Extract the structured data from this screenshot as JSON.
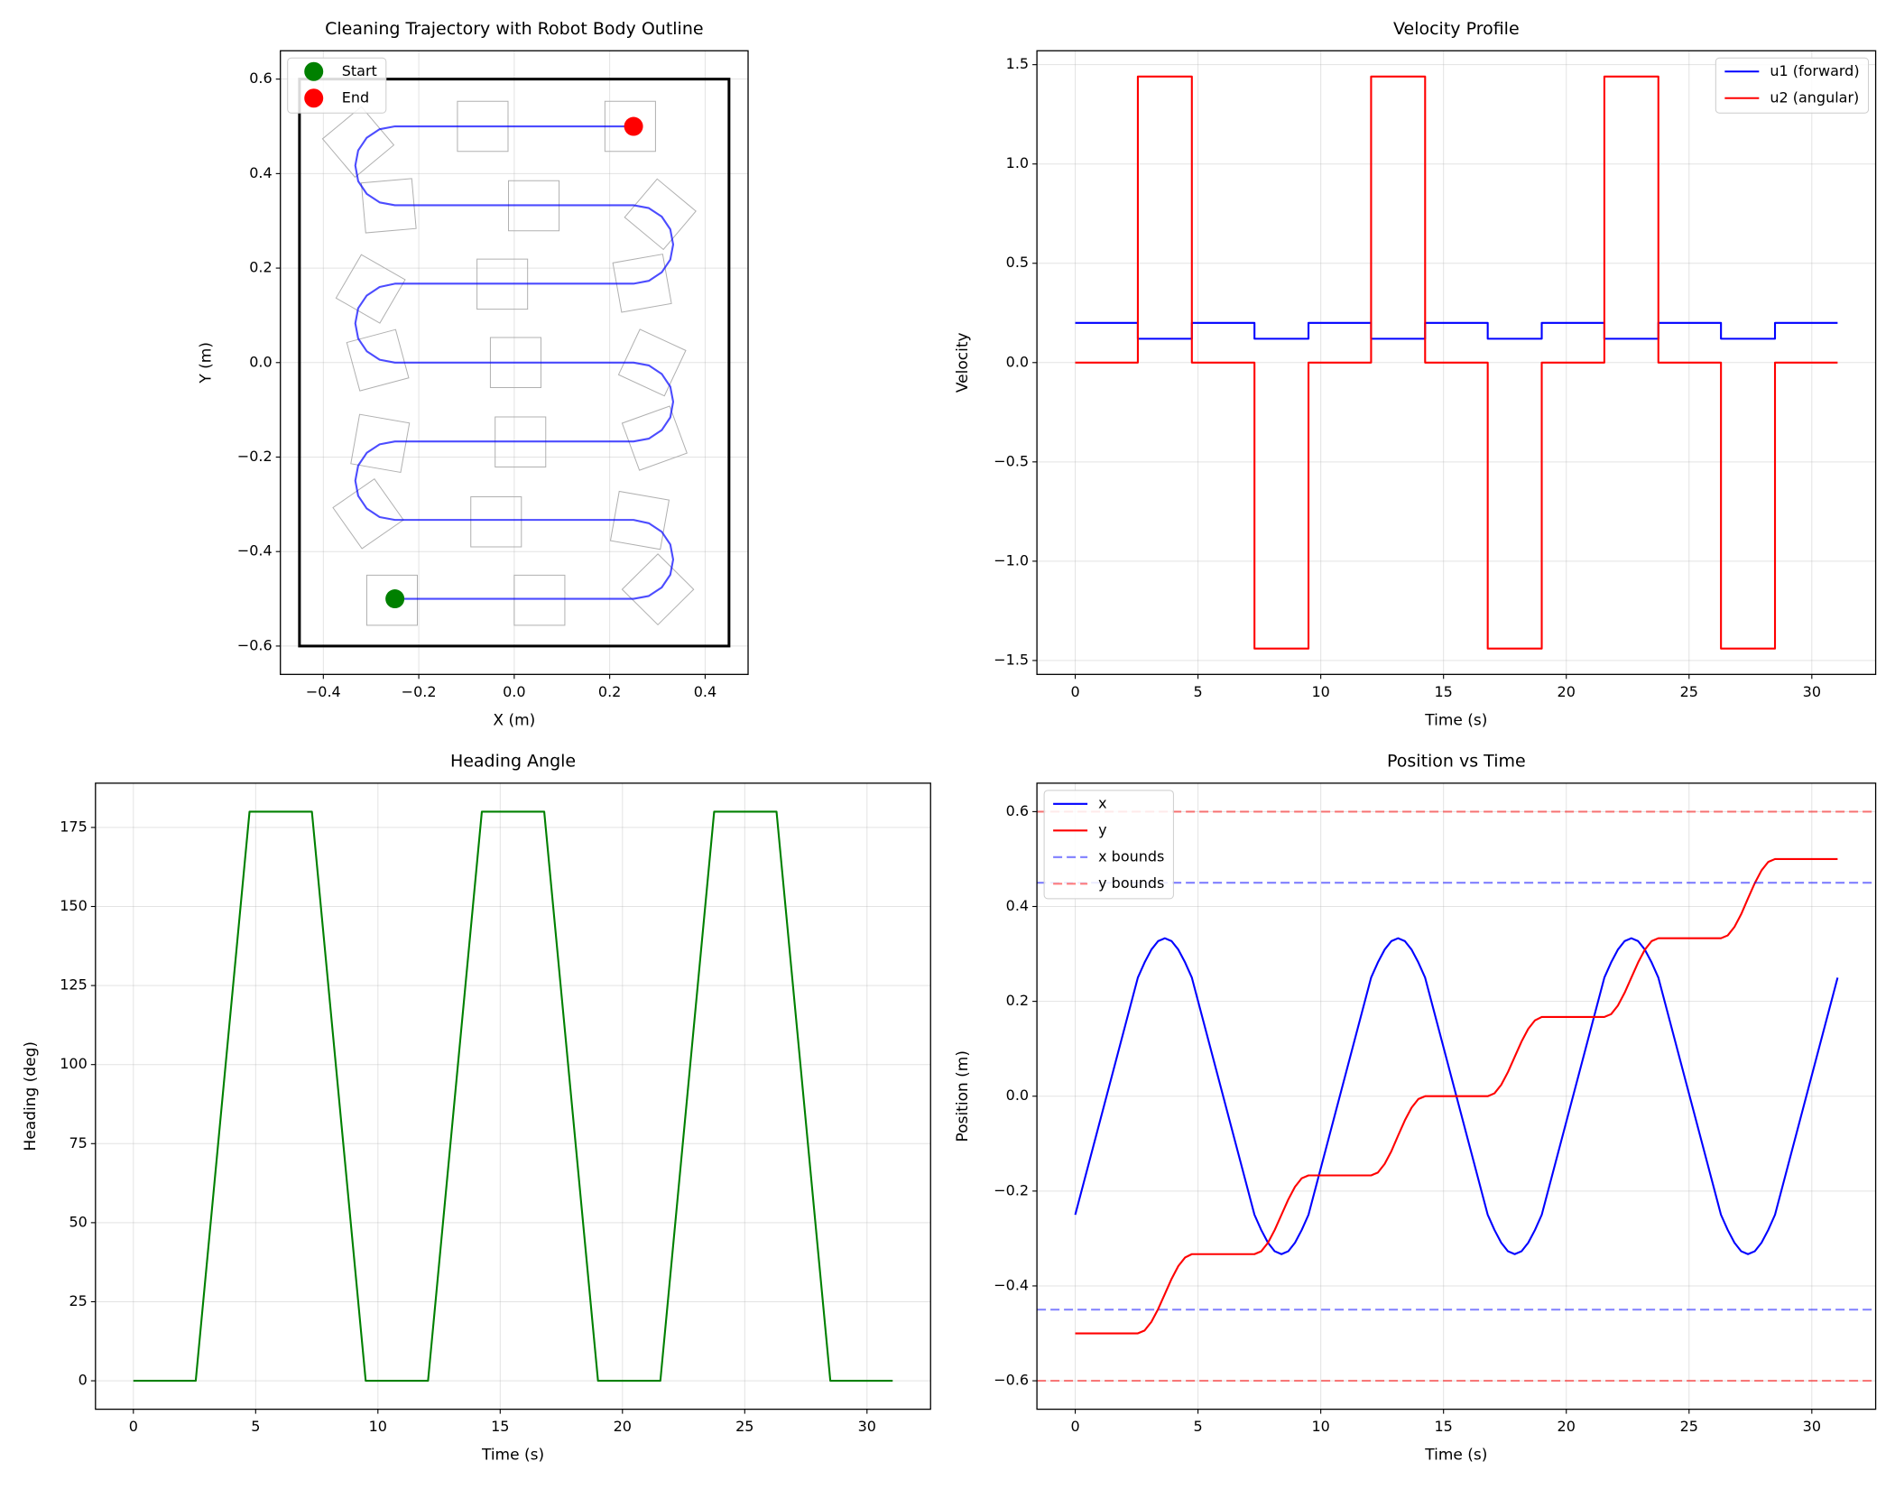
{
  "chart_data": [
    {
      "type": "line",
      "title": "Cleaning Trajectory with Robot Body Outline",
      "xlabel": "X (m)",
      "ylabel": "Y (m)",
      "xlim": [
        -0.49,
        0.49
      ],
      "ylim": [
        -0.66,
        0.66
      ],
      "xticks": [
        {
          "value": -0.4,
          "label": "−0.4"
        },
        {
          "value": -0.2,
          "label": "−0.2"
        },
        {
          "value": 0,
          "label": "0.0"
        },
        {
          "value": 0.2,
          "label": "0.2"
        },
        {
          "value": 0.4,
          "label": "0.4"
        }
      ],
      "yticks": [
        {
          "value": -0.6,
          "label": "−0.6"
        },
        {
          "value": -0.4,
          "label": "−0.4"
        },
        {
          "value": -0.2,
          "label": "−0.2"
        },
        {
          "value": 0,
          "label": "0.0"
        },
        {
          "value": 0.2,
          "label": "0.2"
        },
        {
          "value": 0.4,
          "label": "0.4"
        },
        {
          "value": 0.6,
          "label": "0.6"
        }
      ],
      "grid": true,
      "legend": "upper left",
      "x": [
        -0.25,
        0.25,
        0.282,
        0.309,
        0.327,
        0.333,
        0.327,
        0.309,
        0.282,
        0.25,
        -0.25,
        -0.282,
        -0.309,
        -0.327,
        -0.333,
        -0.327,
        -0.309,
        -0.282,
        -0.25,
        0.25,
        0.282,
        0.309,
        0.327,
        0.333,
        0.327,
        0.309,
        0.282,
        0.25,
        -0.25,
        -0.282,
        -0.309,
        -0.327,
        -0.333,
        -0.327,
        -0.309,
        -0.282,
        -0.25,
        0.25,
        0.282,
        0.309,
        0.327,
        0.333,
        0.327,
        0.309,
        0.282,
        0.25,
        -0.25,
        -0.282,
        -0.309,
        -0.327,
        -0.333,
        -0.327,
        -0.309,
        -0.282,
        -0.25,
        0.25
      ],
      "series": [
        {
          "color": "#0000ff",
          "alpha": 0.7,
          "values": [
            -0.5,
            -0.5,
            -0.494,
            -0.476,
            -0.449,
            -0.417,
            -0.385,
            -0.358,
            -0.34,
            -0.333,
            -0.333,
            -0.327,
            -0.309,
            -0.282,
            -0.25,
            -0.218,
            -0.191,
            -0.173,
            -0.167,
            -0.167,
            -0.161,
            -0.143,
            -0.116,
            -0.083,
            -0.051,
            -0.024,
            -0.006,
            0,
            0,
            0.006,
            0.024,
            0.051,
            0.083,
            0.115,
            0.142,
            0.16,
            0.167,
            0.167,
            0.173,
            0.191,
            0.218,
            0.25,
            0.282,
            0.309,
            0.327,
            0.333,
            0.333,
            0.339,
            0.357,
            0.384,
            0.417,
            0.449,
            0.476,
            0.494,
            0.5,
            0.5
          ]
        }
      ],
      "boundary": {
        "color": "#000000",
        "x": [
          -0.45,
          0.45
        ],
        "y": [
          -0.6,
          0.6
        ]
      },
      "robot_outlines": {
        "color": "#b0b0b0",
        "x": [
          -0.256,
          0.053,
          0.301,
          0.263,
          -0.038,
          -0.306,
          -0.281,
          0.013,
          0.294,
          0.289,
          0.003,
          -0.286,
          -0.301,
          -0.025,
          0.268,
          0.306,
          0.041,
          -0.263,
          -0.327,
          -0.066,
          0.243
        ],
        "y": [
          -0.503,
          -0.503,
          -0.48,
          -0.334,
          -0.337,
          -0.32,
          -0.171,
          -0.168,
          -0.16,
          0,
          0,
          0.005,
          0.156,
          0.166,
          0.168,
          0.314,
          0.332,
          0.332,
          0.467,
          0.5,
          0.5
        ],
        "heading": [
          0,
          0,
          45,
          170,
          180,
          215,
          350,
          0,
          20,
          155,
          180,
          195,
          330,
          0,
          10,
          140,
          180,
          185,
          220,
          0,
          0
        ]
      },
      "markers": [
        {
          "name": "Start",
          "color": "#008000",
          "x": -0.25,
          "y": -0.5
        },
        {
          "name": "End",
          "color": "#ff0000",
          "x": 0.25,
          "y": 0.5
        }
      ]
    },
    {
      "type": "line",
      "title": "Velocity Profile",
      "xlabel": "Time (s)",
      "ylabel": "Velocity",
      "xlim": [
        -1.56,
        32.6
      ],
      "ylim": [
        -1.57,
        1.57
      ],
      "xticks": [
        0,
        5,
        10,
        15,
        20,
        25,
        30
      ],
      "yticks": [
        {
          "value": -1.5,
          "label": "−1.5"
        },
        {
          "value": -1,
          "label": "−1.0"
        },
        {
          "value": -0.5,
          "label": "−0.5"
        },
        {
          "value": 0,
          "label": "0.0"
        },
        {
          "value": 0.5,
          "label": "0.5"
        },
        {
          "value": 1,
          "label": "1.0"
        },
        {
          "value": 1.5,
          "label": "1.5"
        }
      ],
      "grid": true,
      "legend": "upper right",
      "x": [
        0,
        2.55,
        2.55,
        4.75,
        4.75,
        7.3,
        7.3,
        9.5,
        9.5,
        12.05,
        12.05,
        14.25,
        14.25,
        16.8,
        16.8,
        19.0,
        19.0,
        21.55,
        21.55,
        23.75,
        23.75,
        26.3,
        26.3,
        28.5,
        28.5,
        31.05
      ],
      "series": [
        {
          "name": "u1 (forward)",
          "color": "#0000ff",
          "values": [
            0.2,
            0.2,
            0.12,
            0.12,
            0.2,
            0.2,
            0.12,
            0.12,
            0.2,
            0.2,
            0.12,
            0.12,
            0.2,
            0.2,
            0.12,
            0.12,
            0.2,
            0.2,
            0.12,
            0.12,
            0.2,
            0.2,
            0.12,
            0.12,
            0.2,
            0.2
          ]
        },
        {
          "name": "u2 (angular)",
          "color": "#ff0000",
          "values": [
            0,
            0,
            1.44,
            1.44,
            0,
            0,
            -1.44,
            -1.44,
            0,
            0,
            1.44,
            1.44,
            0,
            0,
            -1.44,
            -1.44,
            0,
            0,
            1.44,
            1.44,
            0,
            0,
            -1.44,
            -1.44,
            0,
            0
          ]
        }
      ]
    },
    {
      "type": "line",
      "title": "Heading Angle",
      "xlabel": "Time (s)",
      "ylabel": "Heading (deg)",
      "xlim": [
        -1.55,
        32.6
      ],
      "ylim": [
        -9,
        189
      ],
      "xticks": [
        0,
        5,
        10,
        15,
        20,
        25,
        30
      ],
      "yticks": [
        0,
        25,
        50,
        75,
        100,
        125,
        150,
        175
      ],
      "grid": true,
      "x": [
        0,
        2.55,
        4.75,
        7.3,
        9.5,
        12.05,
        14.25,
        16.8,
        19.0,
        21.55,
        23.75,
        26.3,
        28.5,
        31.05
      ],
      "series": [
        {
          "color": "#008000",
          "values": [
            0,
            0,
            180,
            180,
            0,
            0,
            180,
            180,
            0,
            0,
            180,
            180,
            0,
            0
          ]
        }
      ]
    },
    {
      "type": "line",
      "title": "Position vs Time",
      "xlabel": "Time (s)",
      "ylabel": "Position (m)",
      "xlim": [
        -1.56,
        32.6
      ],
      "ylim": [
        -0.66,
        0.66
      ],
      "xticks": [
        0,
        5,
        10,
        15,
        20,
        25,
        30
      ],
      "yticks": [
        {
          "value": -0.6,
          "label": "−0.6"
        },
        {
          "value": -0.4,
          "label": "−0.4"
        },
        {
          "value": -0.2,
          "label": "−0.2"
        },
        {
          "value": 0,
          "label": "0.0"
        },
        {
          "value": 0.2,
          "label": "0.2"
        },
        {
          "value": 0.4,
          "label": "0.4"
        },
        {
          "value": 0.6,
          "label": "0.6"
        }
      ],
      "grid": true,
      "legend": "upper left",
      "x": [
        0,
        2.55,
        2.825,
        3.1,
        3.375,
        3.65,
        3.925,
        4.2,
        4.475,
        4.75,
        7.3,
        7.575,
        7.85,
        8.125,
        8.4,
        8.675,
        8.95,
        9.225,
        9.5,
        12.05,
        12.325,
        12.6,
        12.875,
        13.15,
        13.425,
        13.7,
        13.975,
        14.25,
        16.8,
        17.075,
        17.35,
        17.625,
        17.9,
        18.175,
        18.45,
        18.725,
        19.0,
        21.55,
        21.825,
        22.1,
        22.375,
        22.65,
        22.925,
        23.2,
        23.475,
        23.75,
        26.3,
        26.575,
        26.85,
        27.125,
        27.4,
        27.675,
        27.95,
        28.225,
        28.5,
        31.05
      ],
      "series": [
        {
          "name": "x",
          "color": "#0000ff",
          "values": [
            -0.25,
            0.25,
            0.282,
            0.309,
            0.327,
            0.333,
            0.327,
            0.309,
            0.282,
            0.25,
            -0.25,
            -0.282,
            -0.309,
            -0.327,
            -0.333,
            -0.327,
            -0.309,
            -0.282,
            -0.25,
            0.25,
            0.282,
            0.309,
            0.327,
            0.333,
            0.327,
            0.309,
            0.282,
            0.25,
            -0.25,
            -0.282,
            -0.309,
            -0.327,
            -0.333,
            -0.327,
            -0.309,
            -0.282,
            -0.25,
            0.25,
            0.282,
            0.309,
            0.327,
            0.333,
            0.327,
            0.309,
            0.282,
            0.25,
            -0.25,
            -0.282,
            -0.309,
            -0.327,
            -0.333,
            -0.327,
            -0.309,
            -0.282,
            -0.25,
            0.25
          ]
        },
        {
          "name": "y",
          "color": "#ff0000",
          "values": [
            -0.5,
            -0.5,
            -0.494,
            -0.476,
            -0.449,
            -0.417,
            -0.385,
            -0.358,
            -0.34,
            -0.333,
            -0.333,
            -0.327,
            -0.309,
            -0.282,
            -0.25,
            -0.218,
            -0.191,
            -0.173,
            -0.167,
            -0.167,
            -0.161,
            -0.143,
            -0.116,
            -0.083,
            -0.051,
            -0.024,
            -0.006,
            0,
            0,
            0.006,
            0.024,
            0.051,
            0.083,
            0.115,
            0.142,
            0.16,
            0.167,
            0.167,
            0.173,
            0.191,
            0.218,
            0.25,
            0.282,
            0.309,
            0.327,
            0.333,
            0.333,
            0.339,
            0.357,
            0.384,
            0.417,
            0.449,
            0.476,
            0.494,
            0.5,
            0.5
          ]
        }
      ],
      "hlines": [
        {
          "name": "x bounds",
          "color": "#0000ff",
          "alpha": 0.5,
          "linestyle": "dashed",
          "values": [
            -0.45,
            0.45
          ]
        },
        {
          "name": "y bounds",
          "color": "#ff0000",
          "alpha": 0.5,
          "linestyle": "dashed",
          "values": [
            -0.6,
            0.6
          ]
        }
      ]
    }
  ]
}
